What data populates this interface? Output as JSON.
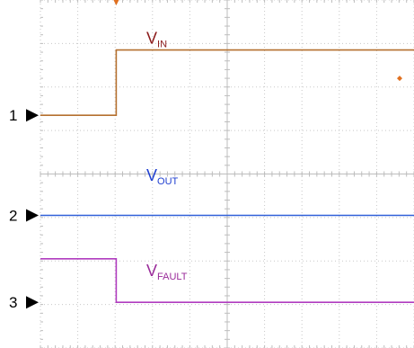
{
  "chart_data": {
    "type": "line",
    "grid": true,
    "x_divisions": 10,
    "y_divisions": 8,
    "xlim": [
      0,
      10
    ],
    "ylim": [
      -4,
      4
    ],
    "series": [
      {
        "name": "V",
        "sub": "IN",
        "channel": "1",
        "color": "#b5702f",
        "label_color": "#8b1a1a",
        "ground": 1.35,
        "label_at": [
          5.0,
          3.0
        ],
        "points": [
          [
            0,
            1.35
          ],
          [
            2.03,
            1.35
          ],
          [
            2.03,
            2.85
          ],
          [
            10,
            2.85
          ]
        ]
      },
      {
        "name": "V",
        "sub": "OUT",
        "channel": "2",
        "color": "#3060d8",
        "label_color": "#1f3fd0",
        "ground": -0.95,
        "label_at": [
          5.0,
          -0.15
        ],
        "points": [
          [
            0,
            -0.95
          ],
          [
            10,
            -0.95
          ]
        ]
      },
      {
        "name": "V",
        "sub": "FAULT",
        "channel": "3",
        "color": "#b03cbf",
        "label_color": "#9a2b9a",
        "ground": -2.95,
        "label_at": [
          5.0,
          -2.35
        ],
        "points": [
          [
            0,
            -1.95
          ],
          [
            2.03,
            -1.95
          ],
          [
            2.03,
            -2.95
          ],
          [
            10,
            -2.95
          ]
        ]
      }
    ]
  }
}
